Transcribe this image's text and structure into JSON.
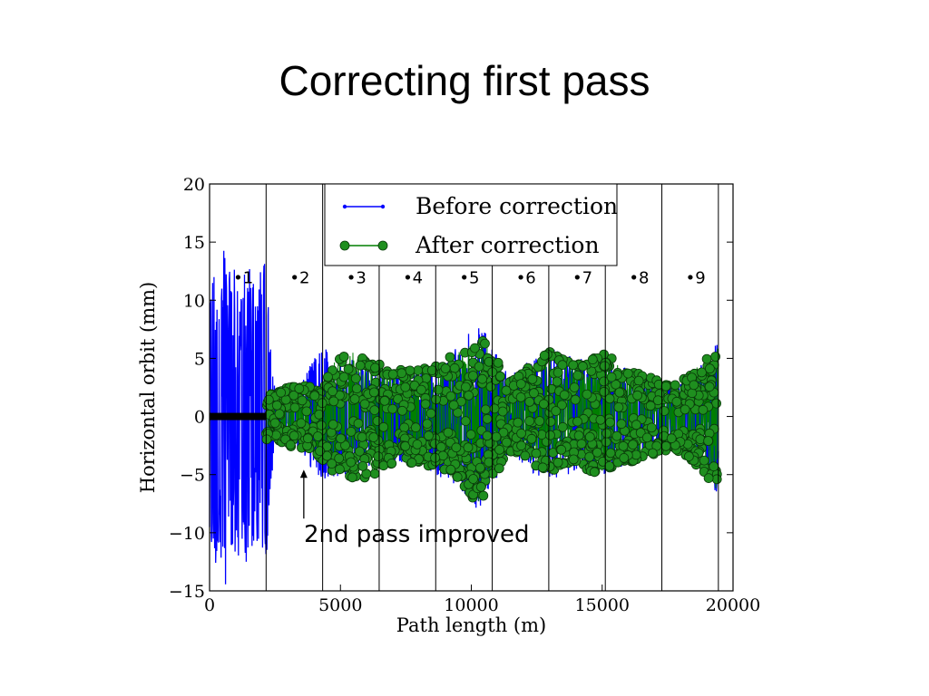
{
  "slide": {
    "title": "Correcting first pass"
  },
  "chart_data": {
    "type": "line",
    "title": "",
    "xlabel": "Path length (m)",
    "ylabel": "Horizontal orbit (mm)",
    "xlim": [
      0,
      20000
    ],
    "ylim": [
      -15,
      20
    ],
    "xticks": [
      0,
      5000,
      10000,
      15000,
      20000
    ],
    "xtick_labels": [
      "0",
      "5000",
      "10000",
      "15000",
      "20000"
    ],
    "yticks": [
      -15,
      -10,
      -5,
      0,
      5,
      10,
      15,
      20
    ],
    "ytick_labels": [
      "−15",
      "−10",
      "−5",
      "0",
      "5",
      "10",
      "15",
      "20"
    ],
    "grid": false,
    "legend_position": "top-center",
    "pass_boundaries": [
      2160,
      4320,
      6480,
      8640,
      10800,
      12960,
      15120,
      17280,
      19440
    ],
    "pass_labels": [
      "•1",
      "•2",
      "•3",
      "•4",
      "•5",
      "•6",
      "•7",
      "•8",
      "•9"
    ],
    "pass_label_y": 12,
    "series": [
      {
        "name": "Before correction",
        "color": "#0000ff",
        "marker": "small-dot",
        "envelope_x": [
          0,
          300,
          600,
          900,
          1200,
          1500,
          1800,
          2160,
          2500,
          3000,
          3500,
          4000,
          4320,
          4800,
          5500,
          6480,
          7000,
          8000,
          8640,
          9500,
          10000,
          10300,
          10800,
          11500,
          12000,
          12960,
          14000,
          15120,
          16000,
          17280,
          18000,
          19000,
          19440
        ],
        "envelope_y": [
          12,
          13,
          15.5,
          13,
          12,
          13.5,
          12,
          13.5,
          2.2,
          2,
          3,
          5,
          6,
          5.5,
          5,
          4,
          4,
          4,
          4.5,
          6,
          7.5,
          8.5,
          6,
          3.5,
          4.5,
          6,
          5,
          5.5,
          4,
          3,
          3,
          5,
          7.5
        ],
        "envelope_y_min": [
          -12,
          -13,
          -14.5,
          -13.5,
          -12,
          -13,
          -12,
          -12.5,
          -2,
          -2,
          -3,
          -5,
          -5.5,
          -5.5,
          -5,
          -4,
          -4,
          -4,
          -5,
          -6,
          -7.5,
          -8.5,
          -6,
          -3.5,
          -4.5,
          -5.5,
          -5,
          -5,
          -4,
          -3,
          -3,
          -5,
          -7
        ]
      },
      {
        "name": "After correction",
        "color": "#007f00",
        "marker": "large-circle",
        "envelope_x": [
          2160,
          2500,
          3000,
          3500,
          4000,
          4320,
          4800,
          5500,
          6480,
          7000,
          8000,
          8640,
          9500,
          10000,
          10300,
          10800,
          11500,
          12000,
          12960,
          14000,
          15120,
          16000,
          17280,
          18000,
          19000,
          19440
        ],
        "envelope_y": [
          2,
          2,
          2.5,
          3,
          2.5,
          2.5,
          5,
          5.5,
          4.5,
          4,
          4,
          4.5,
          5.5,
          6.5,
          7,
          5.5,
          3,
          4,
          6,
          4.5,
          5.5,
          4,
          3,
          3,
          5,
          7.5
        ],
        "envelope_y_min": [
          -2,
          -2,
          -2.5,
          -3,
          -3,
          -4,
          -5,
          -5.5,
          -5,
          -4,
          -4,
          -4.5,
          -5.5,
          -7,
          -7.5,
          -5.5,
          -3,
          -3.5,
          -5,
          -4.5,
          -5,
          -4,
          -3,
          -3,
          -5,
          -7
        ]
      }
    ],
    "annotations": [
      {
        "text": "2nd pass improved",
        "arrow_x": 3600,
        "arrow_y_from": -8,
        "arrow_y_to": -4.5
      }
    ]
  }
}
